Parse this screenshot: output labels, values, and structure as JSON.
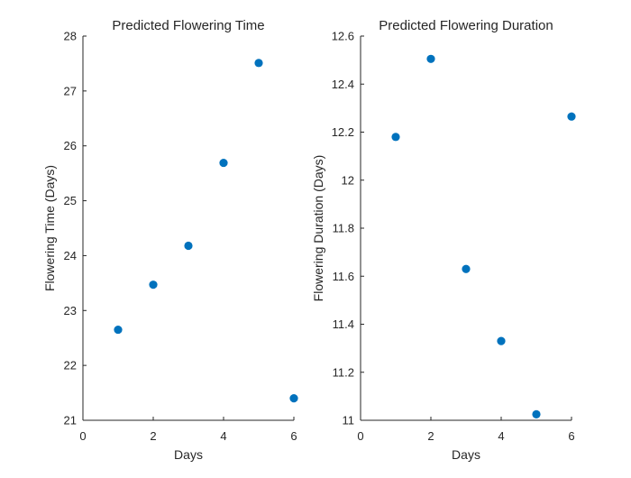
{
  "chart_data": [
    {
      "type": "scatter",
      "title": "Predicted Flowering Time",
      "xlabel": "Days",
      "ylabel": "Flowering Time (Days)",
      "xlim": [
        0,
        6
      ],
      "ylim": [
        21,
        28
      ],
      "xticks": [
        "0",
        "2",
        "4",
        "6"
      ],
      "yticks": [
        "21",
        "22",
        "23",
        "24",
        "25",
        "26",
        "27",
        "28"
      ],
      "x": [
        1,
        2,
        3,
        4,
        5,
        6
      ],
      "y": [
        22.65,
        23.47,
        24.18,
        25.69,
        27.51,
        21.4
      ],
      "color": "#0072BD"
    },
    {
      "type": "scatter",
      "title": "Predicted Flowering Duration",
      "xlabel": "Days",
      "ylabel": "Flowering Duration (Days)",
      "xlim": [
        0,
        6
      ],
      "ylim": [
        11,
        12.6
      ],
      "xticks": [
        "0",
        "2",
        "4",
        "6"
      ],
      "yticks": [
        "11",
        "11.2",
        "11.4",
        "11.6",
        "11.8",
        "12",
        "12.2",
        "12.4",
        "12.6"
      ],
      "x": [
        1,
        2,
        3,
        4,
        5,
        6
      ],
      "y": [
        12.18,
        12.505,
        11.63,
        11.33,
        11.025,
        12.265
      ],
      "color": "#0072BD"
    }
  ]
}
